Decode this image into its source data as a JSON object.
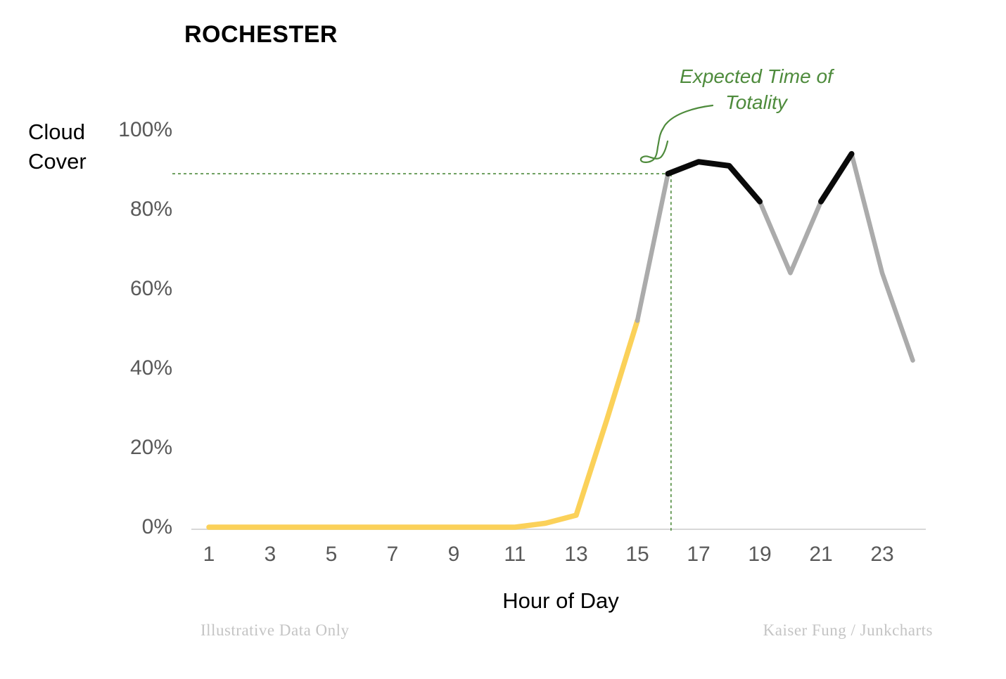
{
  "title": "ROCHESTER",
  "y_axis_label": "Cloud\nCover",
  "x_axis_label": "Hour of Day",
  "annotation": {
    "text": "Expected Time of\nTotality"
  },
  "footer": {
    "left": "Illustrative Data Only",
    "right": "Kaiser Fung / Junkcharts"
  },
  "colors": {
    "line_yellow": "#FBD159",
    "line_gray": "#ABABAB",
    "line_black": "#0A0A0A",
    "annotation_green": "#4E8B3C",
    "axis_gray": "#D8D8D8",
    "tick_text_gray": "#595959",
    "footer_gray": "#C4C4C4"
  },
  "chart_data": {
    "type": "line",
    "title": "ROCHESTER",
    "xlabel": "Hour of Day",
    "ylabel": "Cloud Cover",
    "unit": "%",
    "x": [
      1,
      2,
      3,
      4,
      5,
      6,
      7,
      8,
      9,
      10,
      11,
      12,
      13,
      14,
      15,
      16,
      17,
      18,
      19,
      20,
      21,
      22,
      23,
      24
    ],
    "values": [
      0,
      0,
      0,
      0,
      0,
      0,
      0,
      0,
      0,
      0,
      0,
      1,
      3,
      27,
      52,
      89,
      92,
      91,
      82,
      64,
      82,
      94,
      64,
      42
    ],
    "xlim": [
      1,
      24
    ],
    "ylim": [
      0,
      100
    ],
    "grid": false,
    "legend": "none",
    "xticks": [
      {
        "v": 1,
        "label": "1"
      },
      {
        "v": 3,
        "label": "3"
      },
      {
        "v": 5,
        "label": "5"
      },
      {
        "v": 7,
        "label": "7"
      },
      {
        "v": 9,
        "label": "9"
      },
      {
        "v": 11,
        "label": "11"
      },
      {
        "v": 13,
        "label": "13"
      },
      {
        "v": 15,
        "label": "15"
      },
      {
        "v": 17,
        "label": "17"
      },
      {
        "v": 19,
        "label": "19"
      },
      {
        "v": 21,
        "label": "21"
      },
      {
        "v": 23,
        "label": "23"
      }
    ],
    "yticks": [
      {
        "v": 0,
        "label": "0%"
      },
      {
        "v": 20,
        "label": "20%"
      },
      {
        "v": 40,
        "label": "40%"
      },
      {
        "v": 60,
        "label": "60%"
      },
      {
        "v": 80,
        "label": "80%"
      },
      {
        "v": 100,
        "label": "100%"
      }
    ],
    "segments": [
      {
        "from": 1,
        "to": 15,
        "color": "yellow"
      },
      {
        "from": 15,
        "to": 16,
        "color": "gray"
      },
      {
        "from": 16,
        "to": 19,
        "color": "black"
      },
      {
        "from": 19,
        "to": 21,
        "color": "gray"
      },
      {
        "from": 21,
        "to": 22,
        "color": "black"
      },
      {
        "from": 22,
        "to": 24,
        "color": "gray"
      }
    ],
    "reference_lines": {
      "horizontal_value": 89,
      "vertical_hour": 16.1
    },
    "annotation": {
      "text": "Expected Time of\nTotality",
      "points_to_hour": 16.1,
      "points_to_value": 89
    }
  }
}
